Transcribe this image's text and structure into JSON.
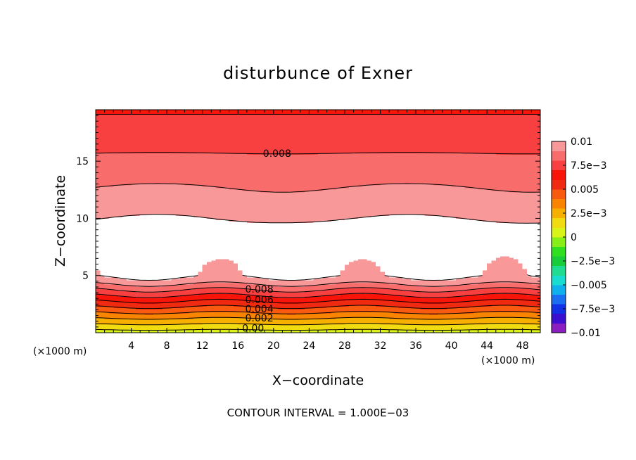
{
  "chart_data": {
    "type": "contour",
    "title": "disturbunce of Exner",
    "xlabel": "X−coordinate",
    "ylabel": "Z−coordinate",
    "x_unit": "(×1000 m)",
    "y_unit": "(×1000 m)",
    "xlim": [
      0,
      50
    ],
    "ylim": [
      0,
      19.5
    ],
    "x_ticks": [
      4,
      8,
      12,
      16,
      20,
      24,
      28,
      32,
      36,
      40,
      44,
      48
    ],
    "y_ticks": [
      5,
      10,
      15
    ],
    "footer": "CONTOUR INTERVAL = 1.000E−03",
    "contour_interval": 0.001,
    "contour_labels": [
      {
        "text": "0.008",
        "x": 20.4,
        "y": 15.7
      },
      {
        "text": "0.008",
        "x": 18.4,
        "y": 3.8
      },
      {
        "text": "0.006",
        "x": 18.4,
        "y": 2.9
      },
      {
        "text": "0.004",
        "x": 18.4,
        "y": 2.1
      },
      {
        "text": "0.002",
        "x": 18.4,
        "y": 1.3
      },
      {
        "text": "0.00",
        "x": 17.7,
        "y": 0.4
      }
    ],
    "field_profile_z": [
      0,
      0.5,
      1.0,
      1.5,
      2.0,
      2.5,
      3.0,
      3.5,
      4.0,
      4.5,
      5.0,
      9.5,
      11.0,
      12.2,
      14.0,
      15.7,
      18.7,
      19.5
    ],
    "field_profile_value": [
      0.0005,
      0.0015,
      0.0025,
      0.0035,
      0.0045,
      0.0055,
      0.0065,
      0.0075,
      0.0085,
      0.0095,
      0.0102,
      0.0102,
      0.0095,
      0.0092,
      0.0085,
      0.008,
      0.0072,
      0.0068
    ],
    "colorbar": {
      "min": -0.01,
      "max": 0.01,
      "labels": [
        "0.01",
        "7.5e−3",
        "0.005",
        "2.5e−3",
        "0",
        "−2.5e−3",
        "−0.005",
        "−7.5e−3",
        "−0.01"
      ],
      "colors": [
        "#8a1ec0",
        "#3c0fd0",
        "#1230e6",
        "#1c6ef0",
        "#10b0ec",
        "#18dcd0",
        "#20dc90",
        "#18cc3a",
        "#30e020",
        "#88ee18",
        "#d8f418",
        "#f0dc10",
        "#f8b000",
        "#f88400",
        "#f85a10",
        "#f02a10",
        "#f81408",
        "#f84040",
        "#f86c6c",
        "#f89898"
      ]
    },
    "above_range_color": "#ffffff"
  }
}
